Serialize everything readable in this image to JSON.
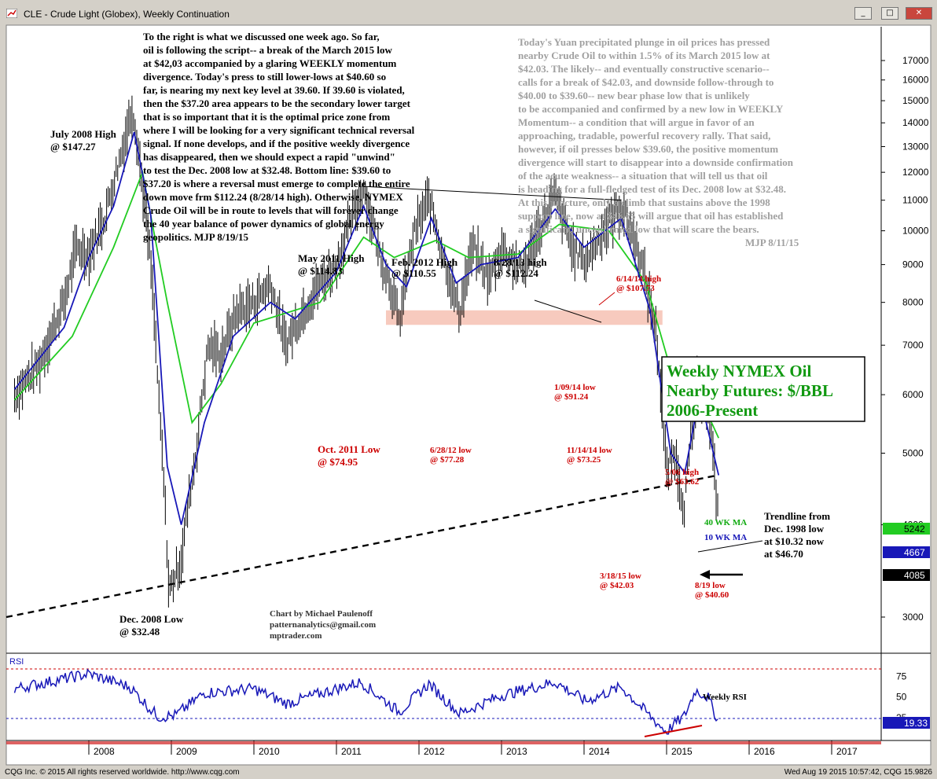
{
  "window": {
    "title": "CLE - Crude Light (Globex), Weekly Continuation",
    "min": "_",
    "max": "□",
    "close": "✕"
  },
  "footer": {
    "left": "CQG Inc. © 2015 All rights reserved worldwide. http://www.cqg.com",
    "right": "Wed Aug 19 2015 10:57:42, CQG 15.9826"
  },
  "colors": {
    "price": "#000000",
    "ma10": "#1818b8",
    "ma40": "#22cc22",
    "annotation_red": "#cc0000",
    "commentary_gray": "#a0a0a0",
    "rsi": "#1818b8"
  },
  "text_left": [
    "To the right is what we discussed one week ago. So far,",
    "oil is following the script-- a break of the March 2015 low",
    "at $42,03 accompanied by a glaring WEEKLY momentum",
    "divergence. Today's press to still lower-lows at $40.60 so",
    "far, is nearing my next key level at 39.60. If 39.60 is violated,",
    "then the $37.20 area appears to be the secondary lower target",
    "that is so important that it is the optimal price zone from",
    "where I will be looking for a very significant technical reversal",
    "signal. If none develops, and if the positive weekly divergence",
    "has disappeared, then we should expect a rapid \"unwind\"",
    "to test the Dec. 2008 low at $32.48. Bottom line: $39.60 to",
    "$37.20 is where a reversal must emerge to complete the entire",
    "down move frm $112.24 (8/28/14 high). Otherwise, NYMEX",
    "Crude Oil will be in route to levels that will forever change",
    "the 40 year balance of power dynamics of global energy",
    "geopolitics. MJP 8/19/15"
  ],
  "text_right": [
    "Today's Yuan precipitated plunge in oil prices has pressed",
    "nearby Crude Oil to within 1.5%  of its March 2015 low at",
    "$42.03. The likely-- and eventually constructive scenario--",
    "calls for a break of $42.03, and downside follow-through to",
    "$40.00 to $39.60-- new bear phase low that is unlikely",
    "to be accompanied and confirmed by a new low in WEEKLY",
    "Momentum-- a condition that will argue in favor of an",
    "approaching, tradable, powerful recovery rally. That said,",
    "however, if oil presses below $39.60, the positive momentum",
    "divergence will start to disappear into a downside confirmation",
    "of the acute weakness-- a situation that will tell us that oil",
    "is heading for a full-fledged test of its Dec. 2008 low at $32.48.",
    "At this juncture, only a climb that sustains above the 1998",
    "support line, now at $46.65 will argue that oil has established",
    "a significant, unconfirmed low that will scare the bears.",
    "MJP 8/11/15"
  ],
  "box_title": [
    "Weekly NYMEX Oil",
    "Nearby Futures: $/BBL",
    "2006-Present"
  ],
  "credit": [
    "Chart by Michael Paulenoff",
    "patternanalytics@gmail.com",
    "mptrader.com"
  ],
  "labels": {
    "july2008": [
      "July 2008 High",
      "@ $147.27"
    ],
    "dec2008": [
      "Dec. 2008 Low",
      "@ $32.48"
    ],
    "may2011": [
      "May 2011 High",
      "@ $114.83"
    ],
    "feb2012": [
      "Feb. 2012 High",
      "@ $110.55"
    ],
    "aug2013": [
      "8/28/13 high",
      "@ $112.24"
    ],
    "jun2014": [
      "6/14/14 high",
      "@ $107.73"
    ],
    "jan2014": [
      "1/09/14 low",
      "@ $91.24"
    ],
    "oct2011": [
      "Oct. 2011 Low",
      "@ $74.95"
    ],
    "jun2012": [
      "6/28/12 low",
      "@ $77.28"
    ],
    "nov2014": [
      "11/14/14 low",
      "@ $73.25"
    ],
    "may2015": [
      "5/06 high",
      "@ $63.62"
    ],
    "mar2015": [
      "3/18/15 low",
      "@ $42.03"
    ],
    "aug2015": [
      "8/19 low",
      "@ $40.60"
    ],
    "trendline": [
      "Trendline from",
      "Dec. 1998 low",
      "at $10.32 now",
      "at $46.70"
    ],
    "ma40": "40 WK MA",
    "ma10": "10 WK MA",
    "rsi_label": "Weekly RSI",
    "rsi_panel": "RSI"
  },
  "price_badges": {
    "ma40": "5242",
    "ma10": "4667",
    "last": "4085",
    "rsi": "19.33"
  },
  "chart_data": {
    "type": "line",
    "title": "CLE - Crude Light (Globex), Weekly Continuation",
    "xlabel": "",
    "ylabel": "",
    "x_ticks": [
      "2008",
      "2009",
      "2010",
      "2011",
      "2012",
      "2013",
      "2014",
      "2015",
      "2016",
      "2017"
    ],
    "y_ticks": [
      "3000",
      "4000",
      "5000",
      "6000",
      "7000",
      "8000",
      "9000",
      "10000",
      "11000",
      "12000",
      "13000",
      "14000",
      "15000",
      "16000",
      "17000"
    ],
    "y_scale": "log",
    "rsi_ticks": [
      "25",
      "50",
      "75"
    ],
    "price_points": [
      [
        2007.1,
        60.0
      ],
      [
        2007.4,
        66.0
      ],
      [
        2007.7,
        80.0
      ],
      [
        2007.85,
        95.0
      ],
      [
        2008.0,
        93.0
      ],
      [
        2008.2,
        105.0
      ],
      [
        2008.4,
        128.0
      ],
      [
        2008.53,
        147.27
      ],
      [
        2008.65,
        115.0
      ],
      [
        2008.75,
        90.0
      ],
      [
        2008.85,
        58.0
      ],
      [
        2008.97,
        32.48
      ],
      [
        2009.12,
        36.0
      ],
      [
        2009.3,
        50.0
      ],
      [
        2009.45,
        70.0
      ],
      [
        2009.6,
        68.0
      ],
      [
        2009.8,
        78.0
      ],
      [
        2010.0,
        80.0
      ],
      [
        2010.2,
        85.0
      ],
      [
        2010.38,
        70.0
      ],
      [
        2010.6,
        78.0
      ],
      [
        2010.8,
        85.0
      ],
      [
        2011.0,
        90.0
      ],
      [
        2011.2,
        105.0
      ],
      [
        2011.33,
        114.83
      ],
      [
        2011.5,
        95.0
      ],
      [
        2011.65,
        85.0
      ],
      [
        2011.76,
        74.95
      ],
      [
        2011.95,
        100.0
      ],
      [
        2012.12,
        110.55
      ],
      [
        2012.3,
        92.0
      ],
      [
        2012.49,
        77.28
      ],
      [
        2012.65,
        95.0
      ],
      [
        2012.85,
        86.0
      ],
      [
        2013.0,
        95.0
      ],
      [
        2013.25,
        88.0
      ],
      [
        2013.5,
        103.0
      ],
      [
        2013.65,
        112.24
      ],
      [
        2013.85,
        95.0
      ],
      [
        2014.02,
        91.24
      ],
      [
        2014.25,
        101.0
      ],
      [
        2014.45,
        107.73
      ],
      [
        2014.65,
        95.0
      ],
      [
        2014.87,
        73.25
      ],
      [
        2015.0,
        47.0
      ],
      [
        2015.1,
        50.0
      ],
      [
        2015.21,
        42.03
      ],
      [
        2015.35,
        58.0
      ],
      [
        2015.35,
        63.62
      ],
      [
        2015.5,
        58.0
      ],
      [
        2015.58,
        47.0
      ],
      [
        2015.63,
        40.6
      ]
    ],
    "ma10_points": [
      [
        2007.1,
        61.0
      ],
      [
        2007.7,
        74.0
      ],
      [
        2008.0,
        92.0
      ],
      [
        2008.3,
        108.0
      ],
      [
        2008.55,
        136.0
      ],
      [
        2008.75,
        105.0
      ],
      [
        2008.95,
        48.0
      ],
      [
        2009.12,
        40.0
      ],
      [
        2009.4,
        55.0
      ],
      [
        2009.75,
        72.0
      ],
      [
        2010.2,
        80.0
      ],
      [
        2010.5,
        76.0
      ],
      [
        2011.0,
        88.0
      ],
      [
        2011.33,
        108.0
      ],
      [
        2011.6,
        90.0
      ],
      [
        2011.85,
        84.0
      ],
      [
        2012.15,
        104.0
      ],
      [
        2012.45,
        85.0
      ],
      [
        2012.75,
        90.0
      ],
      [
        2013.2,
        92.0
      ],
      [
        2013.65,
        107.0
      ],
      [
        2014.0,
        95.0
      ],
      [
        2014.45,
        104.0
      ],
      [
        2014.8,
        78.0
      ],
      [
        2015.05,
        50.0
      ],
      [
        2015.22,
        47.0
      ],
      [
        2015.4,
        60.0
      ],
      [
        2015.63,
        46.67
      ]
    ],
    "ma40_points": [
      [
        2007.1,
        59.0
      ],
      [
        2007.8,
        72.0
      ],
      [
        2008.3,
        95.0
      ],
      [
        2008.65,
        120.0
      ],
      [
        2008.95,
        80.0
      ],
      [
        2009.25,
        55.0
      ],
      [
        2009.6,
        62.0
      ],
      [
        2010.0,
        75.0
      ],
      [
        2010.8,
        80.0
      ],
      [
        2011.33,
        98.0
      ],
      [
        2011.7,
        92.0
      ],
      [
        2012.2,
        97.0
      ],
      [
        2012.6,
        92.0
      ],
      [
        2013.2,
        93.0
      ],
      [
        2013.7,
        102.0
      ],
      [
        2014.3,
        100.0
      ],
      [
        2014.75,
        85.0
      ],
      [
        2015.1,
        62.0
      ],
      [
        2015.45,
        58.0
      ],
      [
        2015.63,
        52.42
      ]
    ],
    "trendline_points": [
      [
        2007.0,
        30.0
      ],
      [
        2015.63,
        46.7
      ]
    ],
    "resistance_line": [
      [
        2011.33,
        114.83
      ],
      [
        2014.45,
        110.0
      ]
    ],
    "support_zone": [
      74.95,
      77.28
    ],
    "rsi_points": [
      [
        2007.1,
        60
      ],
      [
        2007.6,
        70
      ],
      [
        2008.0,
        78
      ],
      [
        2008.5,
        62
      ],
      [
        2008.75,
        35
      ],
      [
        2008.85,
        26
      ],
      [
        2009.05,
        28
      ],
      [
        2009.4,
        55
      ],
      [
        2010.0,
        60
      ],
      [
        2010.4,
        42
      ],
      [
        2011.0,
        60
      ],
      [
        2011.3,
        68
      ],
      [
        2011.76,
        32
      ],
      [
        2012.12,
        66
      ],
      [
        2012.49,
        30
      ],
      [
        2013.0,
        52
      ],
      [
        2013.65,
        68
      ],
      [
        2014.02,
        45
      ],
      [
        2014.45,
        62
      ],
      [
        2014.87,
        20
      ],
      [
        2015.0,
        8
      ],
      [
        2015.1,
        18
      ],
      [
        2015.21,
        26
      ],
      [
        2015.35,
        58
      ],
      [
        2015.5,
        50
      ],
      [
        2015.63,
        19.33
      ]
    ]
  }
}
